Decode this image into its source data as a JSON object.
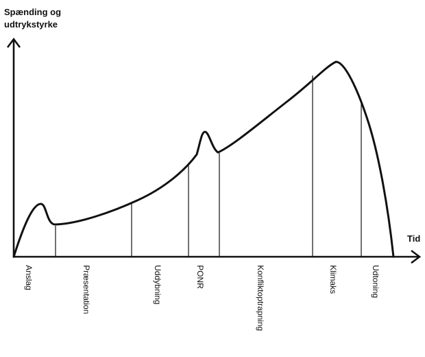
{
  "diagram": {
    "y_axis_title_line1": "Spænding og",
    "y_axis_title_line2": "udtrykstyrke",
    "x_axis_title": "Tid",
    "phases": [
      {
        "label": "Anslag"
      },
      {
        "label": "Præsentation"
      },
      {
        "label": "Uddybning"
      },
      {
        "label": "PONR"
      },
      {
        "label": "Konfliktoptrapning"
      },
      {
        "label": "Klimaks"
      },
      {
        "label": "Udtoning"
      }
    ],
    "colors": {
      "line": "#111111",
      "background": "#ffffff"
    }
  }
}
